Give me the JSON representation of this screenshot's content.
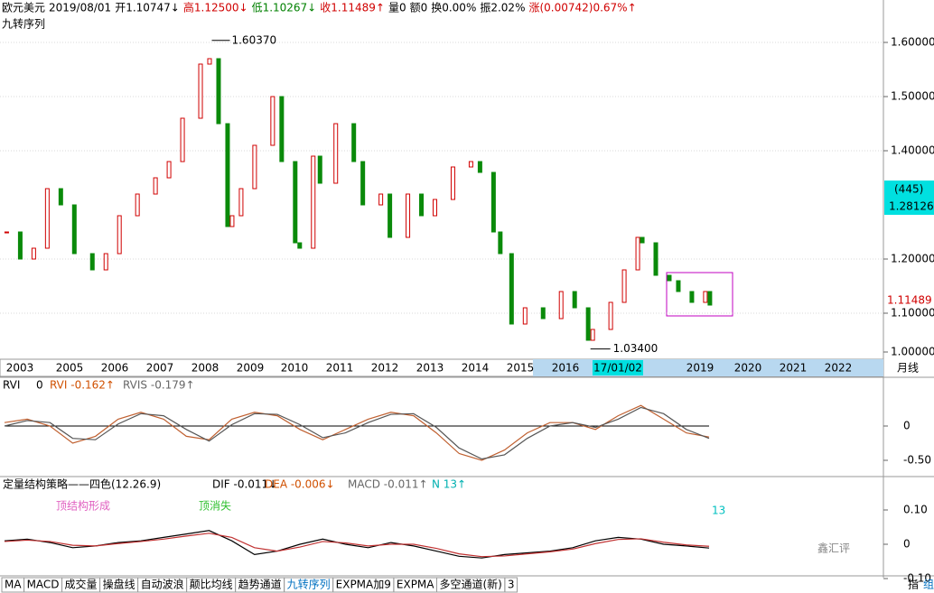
{
  "header": {
    "items": [
      {
        "text": "欧元美元",
        "color": "#000"
      },
      {
        "text": "2019/08/01",
        "color": "#000"
      },
      {
        "text": "开1.10747↓",
        "color": "#000"
      },
      {
        "text": "高1.12500↓",
        "color": "#d00000"
      },
      {
        "text": "低1.10267↓",
        "color": "#008000"
      },
      {
        "text": "收1.11489↑",
        "color": "#d00000"
      },
      {
        "text": "量0",
        "color": "#000"
      },
      {
        "text": "额0",
        "color": "#000"
      },
      {
        "text": "换0.00%",
        "color": "#000"
      },
      {
        "text": "振2.02%",
        "color": "#000"
      },
      {
        "text": "涨(0.00742)0.67%↑",
        "color": "#d00000"
      }
    ],
    "indicator": "九转序列"
  },
  "price": {
    "ticks": [
      {
        "value": 1.6,
        "label": "1.60000"
      },
      {
        "value": 1.5,
        "label": "1.50000"
      },
      {
        "value": 1.4,
        "label": "1.40000"
      },
      {
        "value": 1.2,
        "label": "1.20000"
      },
      {
        "value": 1.1,
        "label": "1.10000"
      },
      {
        "value": 1.0,
        "label": "1.00000"
      }
    ],
    "t": [
      2004.0,
      2004.3,
      2004.6,
      2004.9,
      2005.2,
      2005.5,
      2005.9,
      2006.2,
      2006.5,
      2006.9,
      2007.3,
      2007.6,
      2007.9,
      2008.3,
      2008.5,
      2008.7,
      2008.9,
      2009.0,
      2009.2,
      2009.5,
      2009.9,
      2010.1,
      2010.4,
      2010.5,
      2010.8,
      2010.95,
      2011.3,
      2011.7,
      2011.9,
      2012.3,
      2012.5,
      2012.9,
      2013.2,
      2013.5,
      2013.9,
      2014.3,
      2014.5,
      2014.8,
      2014.95,
      2015.2,
      2015.5,
      2015.9,
      2016.3,
      2016.6,
      2016.9,
      2017.0,
      2017.4,
      2017.7,
      2018.0,
      2018.1,
      2018.4,
      2018.7,
      2018.9,
      2019.2,
      2019.5,
      2019.6
    ],
    "close": [
      1.25,
      1.2,
      1.22,
      1.33,
      1.3,
      1.21,
      1.18,
      1.21,
      1.28,
      1.32,
      1.35,
      1.38,
      1.46,
      1.56,
      1.57,
      1.45,
      1.26,
      1.28,
      1.33,
      1.41,
      1.5,
      1.38,
      1.23,
      1.22,
      1.39,
      1.34,
      1.45,
      1.38,
      1.3,
      1.32,
      1.24,
      1.32,
      1.28,
      1.31,
      1.37,
      1.38,
      1.36,
      1.25,
      1.21,
      1.08,
      1.11,
      1.09,
      1.14,
      1.11,
      1.05,
      1.07,
      1.12,
      1.18,
      1.24,
      1.23,
      1.17,
      1.16,
      1.14,
      1.12,
      1.14,
      1.115
    ],
    "high": {
      "value": 1.6037,
      "label": "1.60370"
    },
    "low": {
      "value": 1.034,
      "label": "1.03400"
    },
    "count": "(445)",
    "cursor": {
      "value": 1.28126,
      "label": "1.28126"
    },
    "last": {
      "value": 1.11489,
      "label": "1.11489"
    }
  },
  "time_axis": {
    "labels": [
      "2003",
      "2005",
      "2006",
      "2007",
      "2008",
      "2009",
      "2010",
      "2011",
      "2012",
      "2013",
      "2014",
      "2015",
      "2016",
      "17/01/02",
      "2019",
      "2020",
      "2021",
      "2022"
    ],
    "period": "月线"
  },
  "rvi": {
    "title": "RVI",
    "param": "0",
    "rvi_label": "RVI -0.162↑",
    "rvis_label": "RVIS -0.179↑",
    "ticks": [
      {
        "value": 0,
        "label": "0"
      },
      {
        "value": -0.5,
        "label": "-0.50"
      }
    ],
    "rvi": [
      0.05,
      0.1,
      0.0,
      -0.25,
      -0.15,
      0.1,
      0.2,
      0.1,
      -0.15,
      -0.2,
      0.1,
      0.2,
      0.15,
      -0.05,
      -0.2,
      -0.05,
      0.1,
      0.2,
      0.15,
      -0.1,
      -0.4,
      -0.5,
      -0.35,
      -0.1,
      0.05,
      0.05,
      -0.05,
      0.15,
      0.3,
      0.1,
      -0.1,
      -0.16
    ],
    "rvis": [
      0.0,
      0.08,
      0.05,
      -0.18,
      -0.2,
      0.03,
      0.18,
      0.15,
      -0.05,
      -0.22,
      0.02,
      0.18,
      0.17,
      0.02,
      -0.17,
      -0.1,
      0.05,
      0.17,
      0.18,
      -0.02,
      -0.32,
      -0.48,
      -0.42,
      -0.18,
      0.0,
      0.05,
      -0.02,
      0.1,
      0.27,
      0.18,
      -0.05,
      -0.18
    ]
  },
  "macd": {
    "title": "定量结构策略——四色(12.26.9)",
    "dif_label": "DIF -0.011↓",
    "dea_label": "DEA -0.006↓",
    "macd_label": "MACD -0.011↑",
    "n_label": "N 13↑",
    "ticks": [
      {
        "value": 0.1,
        "label": "0.10"
      },
      {
        "value": 0,
        "label": "0"
      },
      {
        "value": -0.1,
        "label": "-0.10"
      }
    ],
    "dif": [
      0.01,
      0.015,
      0.005,
      -0.01,
      -0.005,
      0.005,
      0.01,
      0.02,
      0.03,
      0.04,
      0.01,
      -0.03,
      -0.02,
      0.0,
      0.015,
      0.0,
      -0.01,
      0.005,
      -0.005,
      -0.02,
      -0.035,
      -0.04,
      -0.03,
      -0.025,
      -0.02,
      -0.01,
      0.01,
      0.02,
      0.015,
      0.0,
      -0.005,
      -0.011
    ],
    "dea": [
      0.008,
      0.012,
      0.008,
      -0.003,
      -0.005,
      0.002,
      0.008,
      0.015,
      0.024,
      0.032,
      0.02,
      -0.01,
      -0.02,
      -0.008,
      0.008,
      0.004,
      -0.005,
      0.0,
      0.0,
      -0.012,
      -0.028,
      -0.036,
      -0.034,
      -0.028,
      -0.022,
      -0.014,
      0.002,
      0.014,
      0.016,
      0.006,
      -0.002,
      -0.006
    ],
    "notes": [
      "顶结构形成",
      "顶消失",
      "13"
    ]
  },
  "tabs": [
    "MA",
    "MACD",
    "成交量",
    "操盘线",
    "自动波浪",
    "颠比均线",
    "趋势通道",
    "九转序列",
    "EXPMA加9",
    "EXPMA",
    "多空通道(新)",
    "3"
  ],
  "corner": [
    "指",
    "组"
  ],
  "watermark": "鑫汇评"
}
